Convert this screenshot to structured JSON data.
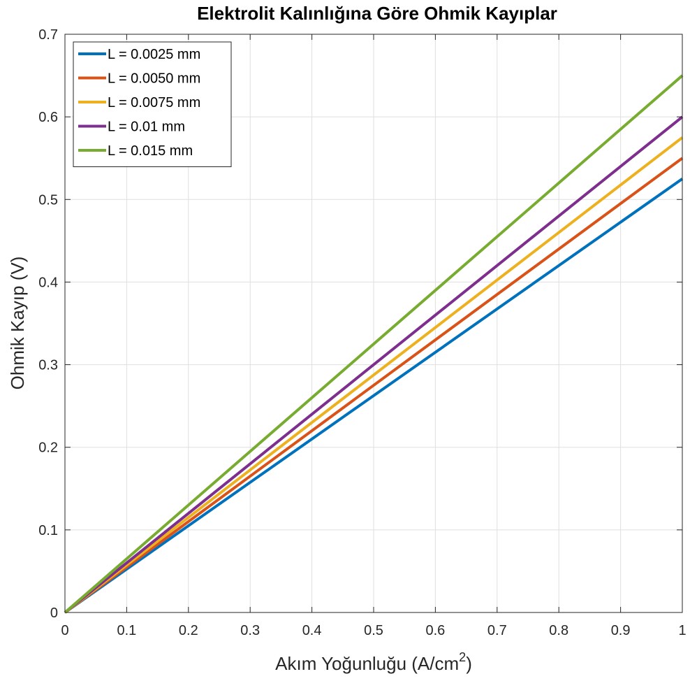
{
  "chart_data": {
    "type": "line",
    "title": "Elektrolit Kalınlığına Göre Ohmik Kayıplar",
    "xlabel": "Akım Yoğunluğu (A/cm",
    "xlabel_superscript": "2",
    "xlabel_suffix": ")",
    "ylabel": "Ohmik Kayıp (V)",
    "xlim": [
      0,
      1
    ],
    "ylim": [
      0,
      0.7
    ],
    "xticks": [
      0,
      0.1,
      0.2,
      0.3,
      0.4,
      0.5,
      0.6,
      0.7,
      0.8,
      0.9,
      1
    ],
    "xtick_labels": [
      "0",
      "0.1",
      "0.2",
      "0.3",
      "0.4",
      "0.5",
      "0.6",
      "0.7",
      "0.8",
      "0.9",
      "1"
    ],
    "yticks": [
      0,
      0.1,
      0.2,
      0.3,
      0.4,
      0.5,
      0.6,
      0.7
    ],
    "ytick_labels": [
      "0",
      "0.1",
      "0.2",
      "0.3",
      "0.4",
      "0.5",
      "0.6",
      "0.7"
    ],
    "grid": true,
    "legend_position": "top-left",
    "x": [
      0,
      1
    ],
    "series": [
      {
        "name": "L = 0.0025 mm",
        "color": "#0072BD",
        "values": [
          0,
          0.525
        ]
      },
      {
        "name": "L = 0.0050 mm",
        "color": "#D95319",
        "values": [
          0,
          0.55
        ]
      },
      {
        "name": "L = 0.0075 mm",
        "color": "#EDB120",
        "values": [
          0,
          0.575
        ]
      },
      {
        "name": "L = 0.01 mm",
        "color": "#7E2F8E",
        "values": [
          0,
          0.6
        ]
      },
      {
        "name": "L = 0.015 mm",
        "color": "#77AC30",
        "values": [
          0,
          0.65
        ]
      }
    ]
  }
}
